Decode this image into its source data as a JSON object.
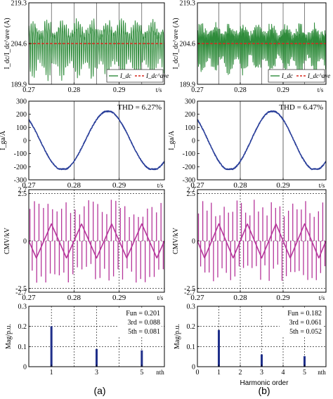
{
  "columns": [
    {
      "caption": "(a)",
      "thd_label": "THD = 6.27%",
      "fun_lines": [
        "Fun = 0.201",
        "3rd = 0.088",
        "5th = 0.081"
      ]
    },
    {
      "caption": "(b)",
      "thd_label": "THD = 6.47%",
      "fun_lines": [
        "Fun = 0.182",
        "3rd = 0.061",
        "5th = 0.052"
      ]
    }
  ],
  "xlabel_bottom_b": "Harmonic order",
  "colors": {
    "idc": "#2e8b3a",
    "avg": "#d62a1e",
    "iga": "#2a3f9a",
    "cmv": "#b5359a",
    "bar": "#1f2f8a",
    "grid": "#000000"
  },
  "chart_data": [
    {
      "id": "a1",
      "type": "line",
      "ylabel": "I_dc/I_dc^ave (A)",
      "ylim": [
        189.9,
        219.3
      ],
      "yticks": [
        189.9,
        204.6,
        219.3
      ],
      "xlim": [
        0.27,
        0.3
      ],
      "xticks": [
        0.27,
        0.28,
        0.29
      ],
      "xunit": "t/s",
      "series": [
        {
          "name": "I_dc",
          "mean": 204.6,
          "amplitude": 11,
          "cycles_per_ms": 2.3
        },
        {
          "name": "I_dc^ave",
          "value": 204.6
        }
      ]
    },
    {
      "id": "b1",
      "type": "line",
      "ylabel": "I_dc/I_dc^ave (A)",
      "ylim": [
        189.9,
        219.3
      ],
      "yticks": [
        189.9,
        204.6,
        219.3
      ],
      "xlim": [
        0.27,
        0.3
      ],
      "xticks": [
        0.27,
        0.28,
        0.29
      ],
      "xunit": "t/s",
      "series": [
        {
          "name": "I_dc",
          "mean": 204.6,
          "amplitude": 9,
          "cycles_per_ms": 3.3
        },
        {
          "name": "I_dc^ave",
          "value": 204.6
        }
      ]
    },
    {
      "id": "a2",
      "type": "line",
      "ylabel": "I_ga/A",
      "ylim": [
        -300,
        300
      ],
      "yticks": [
        -300,
        -200,
        -100,
        0,
        100,
        200,
        300
      ],
      "xlim": [
        0.27,
        0.3
      ],
      "xticks": [
        0.27,
        0.28,
        0.29
      ],
      "xunit": "t/s",
      "series": [
        {
          "name": "I_ga",
          "peak": 225,
          "freq_hz": 50,
          "phase_deg": 135
        }
      ]
    },
    {
      "id": "b2",
      "type": "line",
      "ylabel": "I_ga/A",
      "ylim": [
        -300,
        300
      ],
      "yticks": [
        -300,
        -200,
        -100,
        0,
        100,
        200,
        300
      ],
      "xlim": [
        0.27,
        0.3
      ],
      "xticks": [
        0.27,
        0.28,
        0.29
      ],
      "xunit": "t/s",
      "series": [
        {
          "name": "I_ga",
          "peak": 225,
          "freq_hz": 50,
          "phase_deg": 135
        }
      ]
    },
    {
      "id": "a3",
      "type": "line",
      "ylabel": "CMV/kV",
      "ylim": [
        -2.7,
        2.7
      ],
      "yticks": [
        -2.7,
        -2.5,
        0,
        2.5,
        2.7
      ],
      "xlim": [
        0.27,
        0.3
      ],
      "xticks": [
        0.27,
        0.28,
        0.29
      ],
      "xunit": "t/s",
      "series": [
        {
          "name": "CMV",
          "triangle_amplitude": 0.9,
          "spike_amplitude": 2.2
        }
      ]
    },
    {
      "id": "b3",
      "type": "line",
      "ylabel": "CMV/kV",
      "ylim": [
        -2.7,
        2.7
      ],
      "yticks": [
        -2.7,
        -2.5,
        0,
        2.5,
        2.7
      ],
      "xlim": [
        0.27,
        0.3
      ],
      "xticks": [
        0.27,
        0.28,
        0.29
      ],
      "xunit": "t/s",
      "series": [
        {
          "name": "CMV",
          "triangle_amplitude": 0.9,
          "spike_amplitude": 2.2
        }
      ]
    },
    {
      "id": "a4",
      "type": "bar",
      "ylabel": "Mag/p.u.",
      "ylim": [
        0,
        0.3
      ],
      "yticks": [
        0,
        0.1,
        0.2,
        0.3
      ],
      "xlim": [
        0,
        6
      ],
      "xticks": [
        1,
        3,
        5
      ],
      "xunit": "nth",
      "x": [
        1,
        3,
        5
      ],
      "values": [
        0.201,
        0.088,
        0.081
      ]
    },
    {
      "id": "b4",
      "type": "bar",
      "ylabel": "Mag/p.u.",
      "ylim": [
        0,
        0.3
      ],
      "yticks": [
        0,
        0.1,
        0.2,
        0.3
      ],
      "xlim": [
        0,
        6
      ],
      "xticks": [
        0,
        1,
        2,
        3,
        4,
        5
      ],
      "xunit": "nth",
      "x": [
        1,
        3,
        5
      ],
      "values": [
        0.182,
        0.061,
        0.052
      ]
    }
  ]
}
